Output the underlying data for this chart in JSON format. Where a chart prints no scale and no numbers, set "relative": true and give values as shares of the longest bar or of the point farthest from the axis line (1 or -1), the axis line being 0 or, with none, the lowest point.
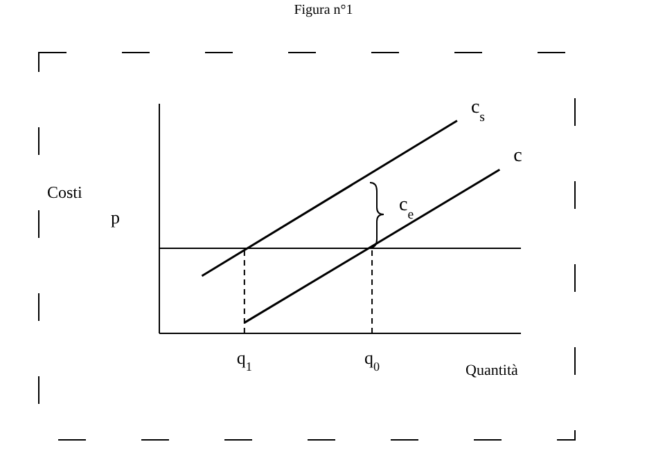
{
  "chart_data": {
    "type": "line",
    "title": "Figura n°1",
    "xlabel": "Quantità",
    "ylabel": "Costi",
    "relative": true,
    "marker": "none",
    "line_style": "solid",
    "categories": [
      null,
      null,
      null,
      null,
      "q$_{1}$",
      null,
      null,
      null,
      null,
      null,
      "q$_{0}$",
      null,
      null,
      null,
      null,
      null,
      null,
      null
    ],
    "series": [
      {
        "name": "c$_{s}$",
        "color": "#000000",
        "values": [
          null,
          null,
          0.27,
          null,
          null,
          null,
          null,
          null,
          null,
          null,
          null,
          null,
          null,
          null,
          1,
          null,
          null,
          null
        ]
      },
      {
        "name": "c",
        "color": "#000000",
        "values": [
          null,
          null,
          null,
          null,
          0.05,
          null,
          null,
          null,
          null,
          null,
          null,
          null,
          null,
          null,
          null,
          null,
          0.77,
          null
        ]
      }
    ],
    "ref_lines": [
      {
        "axis": "y",
        "value": 0.4,
        "label": "p",
        "color": "#000000",
        "line_style": "solid"
      },
      {
        "axis": "x",
        "value": "q$_{1}$",
        "color": "#000000",
        "line_style": "dashed"
      },
      {
        "axis": "x",
        "value": "q$_{0}$",
        "color": "#000000",
        "line_style": "dashed"
      }
    ],
    "annotations": [
      "c$_{e}$"
    ]
  }
}
